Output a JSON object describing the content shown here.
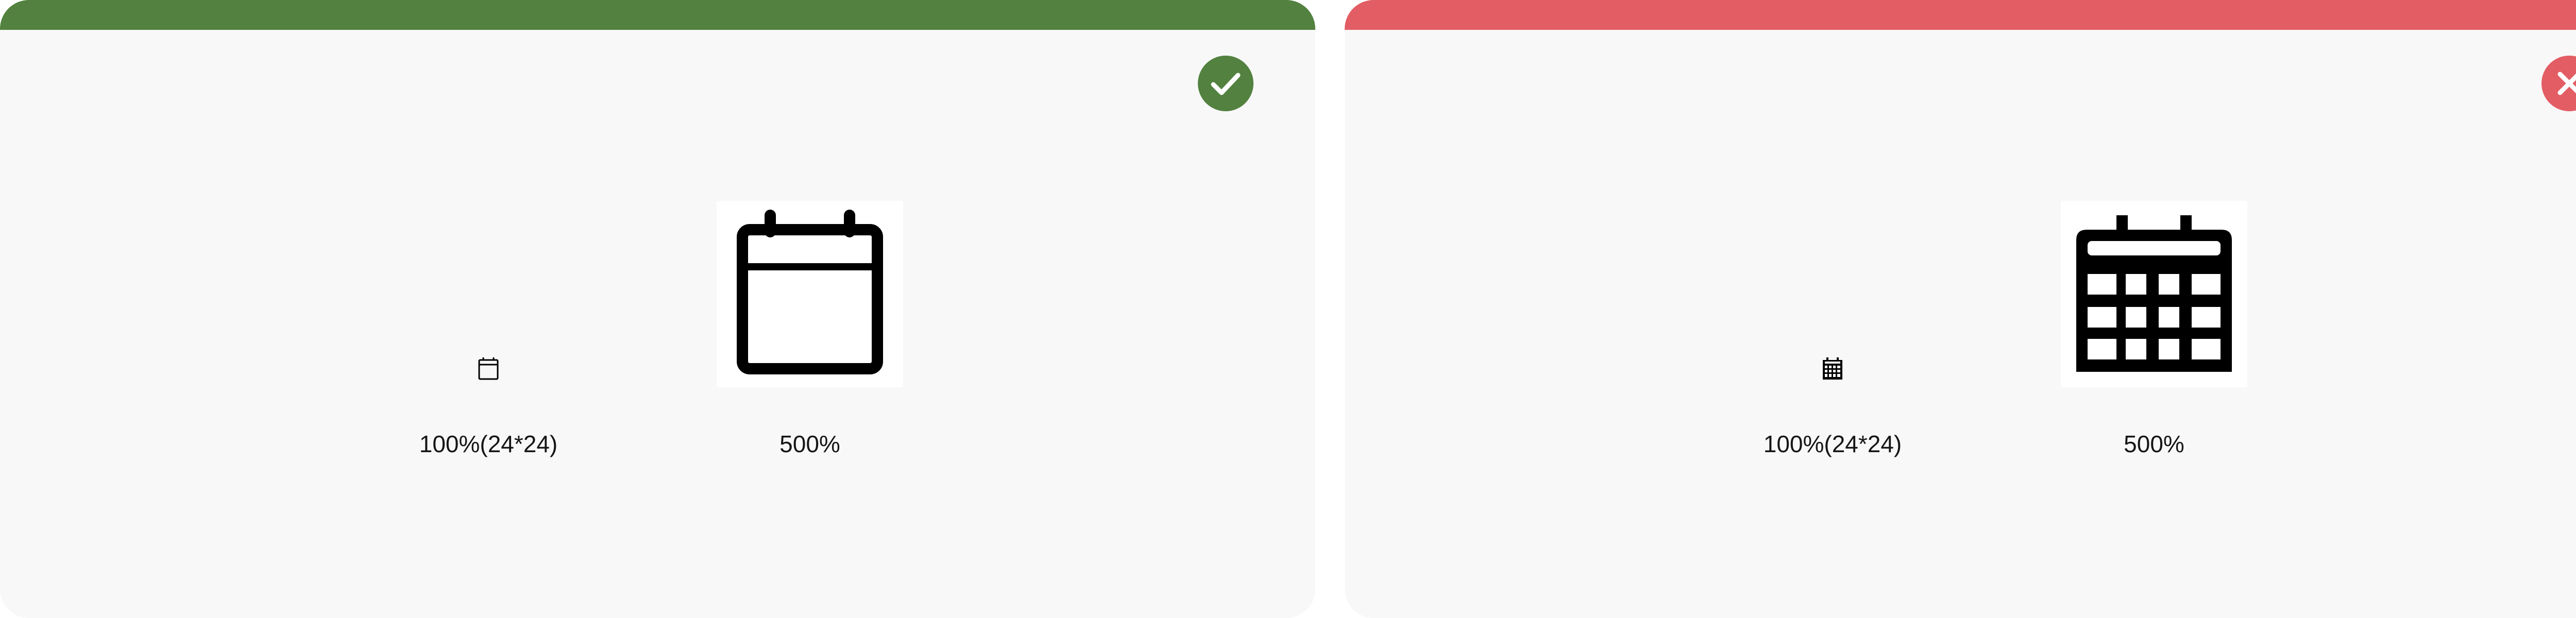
{
  "panels": [
    {
      "status": "correct",
      "accent_color": "#53813f",
      "badge_icon": "checkmark-icon",
      "examples": [
        {
          "caption": "100%(24*24)",
          "icon": "calendar-outline-icon"
        },
        {
          "caption": "500%",
          "icon": "calendar-outline-icon"
        }
      ]
    },
    {
      "status": "incorrect",
      "accent_color": "#e35d64",
      "badge_icon": "close-icon",
      "examples": [
        {
          "caption": "100%(24*24)",
          "icon": "calendar-grid-icon"
        },
        {
          "caption": "500%",
          "icon": "calendar-grid-icon"
        }
      ]
    }
  ]
}
